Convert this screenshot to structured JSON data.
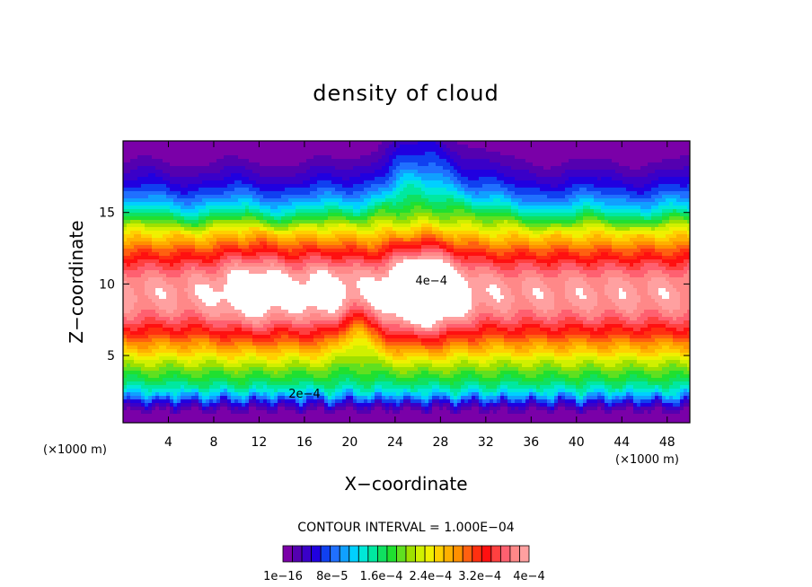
{
  "chart_data": {
    "type": "heatmap",
    "title": "density of cloud",
    "xlabel": "X−coordinate",
    "ylabel": "Z−coordinate",
    "x_unit_label": "(×1000 m)",
    "y_unit_label": "(×1000 m)",
    "x_range": [
      0,
      50
    ],
    "y_range": [
      0.3,
      20
    ],
    "x_ticks": [
      "4",
      "8",
      "12",
      "16",
      "20",
      "24",
      "28",
      "32",
      "36",
      "40",
      "44",
      "48"
    ],
    "y_ticks": [
      "5",
      "10",
      "15"
    ],
    "contour_interval_text": "CONTOUR INTERVAL = 1.000E−04",
    "contour_line_labels": [
      {
        "text": "2e−4",
        "x": 16.0,
        "z": 2.3
      },
      {
        "text": "4e−4",
        "x": 27.2,
        "z": 10.2
      }
    ],
    "colorbar": {
      "colors": [
        "#7a00a8",
        "#5400b0",
        "#3a00c8",
        "#2000e0",
        "#1040f0",
        "#2070ff",
        "#10a0ff",
        "#00d0ff",
        "#00e8d8",
        "#00e8a0",
        "#10e060",
        "#20e030",
        "#60e020",
        "#9ee000",
        "#d0f000",
        "#f0f000",
        "#ffd000",
        "#ffb000",
        "#ff9000",
        "#ff6010",
        "#ff3010",
        "#ff1010",
        "#ff4040",
        "#ff6070",
        "#ff8888",
        "#ffa0a0"
      ],
      "tick_labels": [
        "1e−16",
        "8e−5",
        "1.6e−4",
        "2.4e−4",
        "3.2e−4",
        "4e−4"
      ]
    }
  }
}
